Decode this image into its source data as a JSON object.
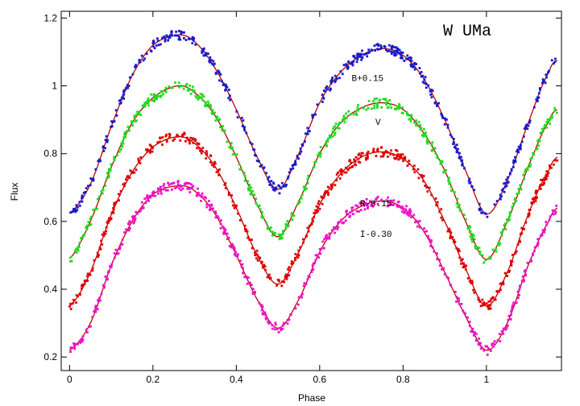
{
  "chart_data": {
    "type": "scatter",
    "title": "W UMa",
    "xlabel": "Phase",
    "ylabel": "Flux",
    "xlim": [
      -0.02,
      1.18
    ],
    "ylim": [
      0.16,
      1.22
    ],
    "xticks": [
      0,
      0.2,
      0.4,
      0.6,
      0.8,
      1
    ],
    "xtick_labels": [
      "0",
      "0.2",
      "0.4",
      "0.6",
      "0.8",
      "1"
    ],
    "yticks": [
      0.2,
      0.4,
      0.6,
      0.8,
      1.0,
      1.2
    ],
    "ytick_labels": [
      "0.2",
      "0.4",
      "0.6",
      "0.8",
      "1",
      "1.2"
    ],
    "grid": false,
    "fit_color": "#c00000",
    "series": [
      {
        "label": "B+0.15",
        "color": "#1a1acc",
        "label_pos": [
          0.715,
          1.015
        ],
        "keypoints": [
          [
            0.0,
            0.625
          ],
          [
            0.05,
            0.71
          ],
          [
            0.1,
            0.88
          ],
          [
            0.15,
            1.03
          ],
          [
            0.2,
            1.12
          ],
          [
            0.26,
            1.15
          ],
          [
            0.3,
            1.13
          ],
          [
            0.35,
            1.05
          ],
          [
            0.4,
            0.93
          ],
          [
            0.45,
            0.79
          ],
          [
            0.5,
            0.695
          ],
          [
            0.55,
            0.8
          ],
          [
            0.6,
            0.95
          ],
          [
            0.65,
            1.04
          ],
          [
            0.7,
            1.09
          ],
          [
            0.75,
            1.11
          ],
          [
            0.8,
            1.09
          ],
          [
            0.85,
            1.02
          ],
          [
            0.9,
            0.9
          ],
          [
            0.95,
            0.75
          ],
          [
            1.0,
            0.622
          ],
          [
            1.05,
            0.72
          ],
          [
            1.1,
            0.89
          ],
          [
            1.15,
            1.04
          ],
          [
            1.17,
            1.075
          ]
        ]
      },
      {
        "label": "V",
        "color": "#22dd22",
        "label_pos": [
          0.74,
          0.885
        ],
        "keypoints": [
          [
            0.0,
            0.49
          ],
          [
            0.05,
            0.6
          ],
          [
            0.1,
            0.76
          ],
          [
            0.15,
            0.89
          ],
          [
            0.2,
            0.965
          ],
          [
            0.26,
            1.0
          ],
          [
            0.3,
            0.98
          ],
          [
            0.35,
            0.91
          ],
          [
            0.4,
            0.79
          ],
          [
            0.45,
            0.65
          ],
          [
            0.5,
            0.555
          ],
          [
            0.55,
            0.66
          ],
          [
            0.6,
            0.8
          ],
          [
            0.65,
            0.89
          ],
          [
            0.7,
            0.935
          ],
          [
            0.75,
            0.95
          ],
          [
            0.8,
            0.93
          ],
          [
            0.85,
            0.86
          ],
          [
            0.9,
            0.75
          ],
          [
            0.95,
            0.6
          ],
          [
            1.0,
            0.488
          ],
          [
            1.05,
            0.6
          ],
          [
            1.1,
            0.76
          ],
          [
            1.15,
            0.895
          ],
          [
            1.17,
            0.93
          ]
        ]
      },
      {
        "label": "R-0.15",
        "color": "#e00000",
        "label_pos": [
          0.735,
          0.645
        ],
        "keypoints": [
          [
            0.0,
            0.35
          ],
          [
            0.05,
            0.45
          ],
          [
            0.1,
            0.62
          ],
          [
            0.15,
            0.745
          ],
          [
            0.2,
            0.82
          ],
          [
            0.26,
            0.85
          ],
          [
            0.3,
            0.83
          ],
          [
            0.35,
            0.76
          ],
          [
            0.4,
            0.64
          ],
          [
            0.45,
            0.5
          ],
          [
            0.5,
            0.415
          ],
          [
            0.55,
            0.51
          ],
          [
            0.6,
            0.65
          ],
          [
            0.65,
            0.74
          ],
          [
            0.7,
            0.79
          ],
          [
            0.75,
            0.805
          ],
          [
            0.8,
            0.785
          ],
          [
            0.85,
            0.72
          ],
          [
            0.9,
            0.6
          ],
          [
            0.95,
            0.46
          ],
          [
            1.0,
            0.35
          ],
          [
            1.05,
            0.45
          ],
          [
            1.1,
            0.62
          ],
          [
            1.15,
            0.75
          ],
          [
            1.17,
            0.79
          ]
        ]
      },
      {
        "label": "I-0.30",
        "color": "#ee11cc",
        "label_pos": [
          0.735,
          0.555
        ],
        "keypoints": [
          [
            0.0,
            0.22
          ],
          [
            0.05,
            0.3
          ],
          [
            0.1,
            0.47
          ],
          [
            0.15,
            0.6
          ],
          [
            0.2,
            0.68
          ],
          [
            0.26,
            0.705
          ],
          [
            0.3,
            0.69
          ],
          [
            0.35,
            0.62
          ],
          [
            0.4,
            0.5
          ],
          [
            0.45,
            0.37
          ],
          [
            0.5,
            0.285
          ],
          [
            0.55,
            0.37
          ],
          [
            0.6,
            0.51
          ],
          [
            0.65,
            0.6
          ],
          [
            0.7,
            0.645
          ],
          [
            0.75,
            0.66
          ],
          [
            0.8,
            0.64
          ],
          [
            0.85,
            0.57
          ],
          [
            0.9,
            0.45
          ],
          [
            0.95,
            0.32
          ],
          [
            1.0,
            0.22
          ],
          [
            1.05,
            0.3
          ],
          [
            1.1,
            0.47
          ],
          [
            1.15,
            0.6
          ],
          [
            1.17,
            0.64
          ]
        ]
      }
    ]
  }
}
